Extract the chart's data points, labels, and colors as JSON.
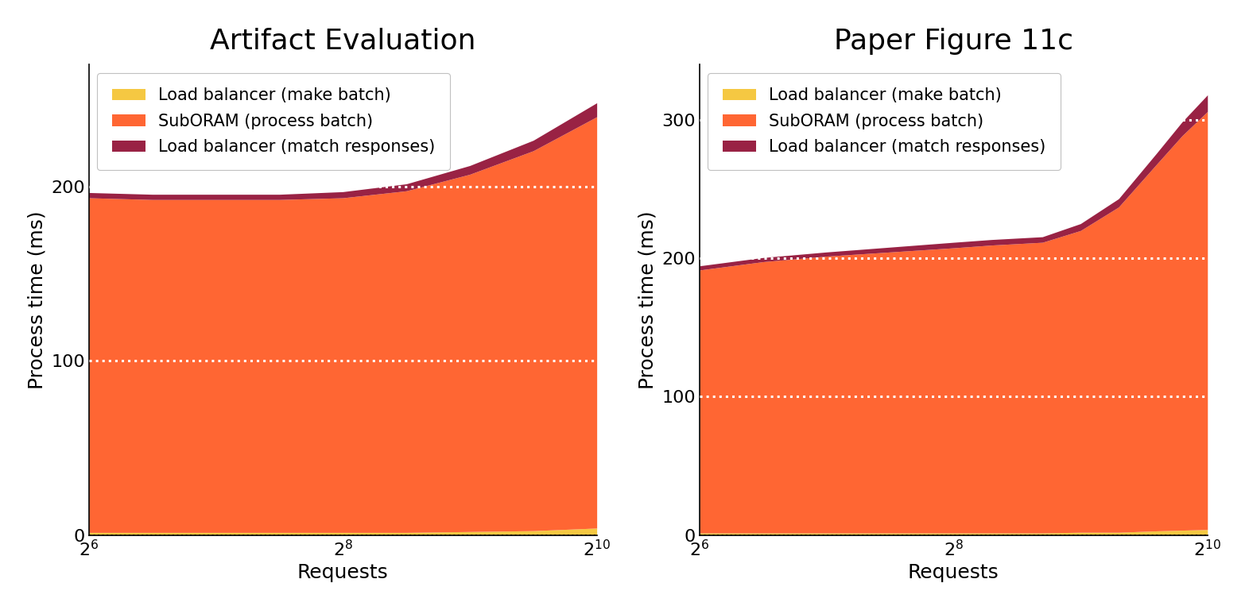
{
  "left_title": "Artifact Evaluation",
  "right_title": "Paper Figure 11c",
  "xlabel": "Requests",
  "ylabel": "Process time (ms)",
  "legend_labels": [
    "Load balancer (make batch)",
    "SubORAM (process batch)",
    "Load balancer (match responses)"
  ],
  "colors": [
    "#F5C842",
    "#FF6633",
    "#992244"
  ],
  "x_ticks_log2": [
    6,
    8,
    10
  ],
  "x_tick_labels": [
    "$2^{6}$",
    "$2^{8}$",
    "$2^{10}$"
  ],
  "left_x": [
    6,
    6.5,
    7,
    7.5,
    8,
    8.5,
    9,
    9.5,
    10
  ],
  "left_make_batch": [
    1.5,
    1.5,
    1.5,
    1.5,
    1.5,
    1.5,
    2,
    2.5,
    4
  ],
  "left_process_batch": [
    192,
    191,
    191,
    191,
    192,
    196,
    205,
    218,
    236
  ],
  "left_match_responses": [
    3,
    3,
    3,
    3,
    3.5,
    4,
    5,
    6,
    8
  ],
  "right_x": [
    6,
    6.5,
    7,
    7.5,
    8,
    8.3,
    8.7,
    9.0,
    9.3,
    9.6,
    9.8,
    10
  ],
  "right_make_batch": [
    1.5,
    1.5,
    1.5,
    1.5,
    1.5,
    1.5,
    1.5,
    2,
    2,
    3,
    3.5,
    4
  ],
  "right_process_batch": [
    190,
    196,
    200,
    203,
    206,
    208,
    210,
    218,
    235,
    265,
    285,
    302
  ],
  "right_match_responses": [
    3,
    3,
    3,
    3.5,
    4,
    4,
    4,
    5,
    6,
    8,
    10,
    12
  ],
  "left_ylim": [
    0,
    270
  ],
  "right_ylim": [
    0,
    340
  ],
  "left_yticks": [
    0,
    100,
    200
  ],
  "right_yticks": [
    0,
    100,
    200,
    300
  ],
  "background_color": "#FFFFFF",
  "title_fontsize": 26,
  "label_fontsize": 18,
  "tick_fontsize": 16,
  "legend_fontsize": 15
}
